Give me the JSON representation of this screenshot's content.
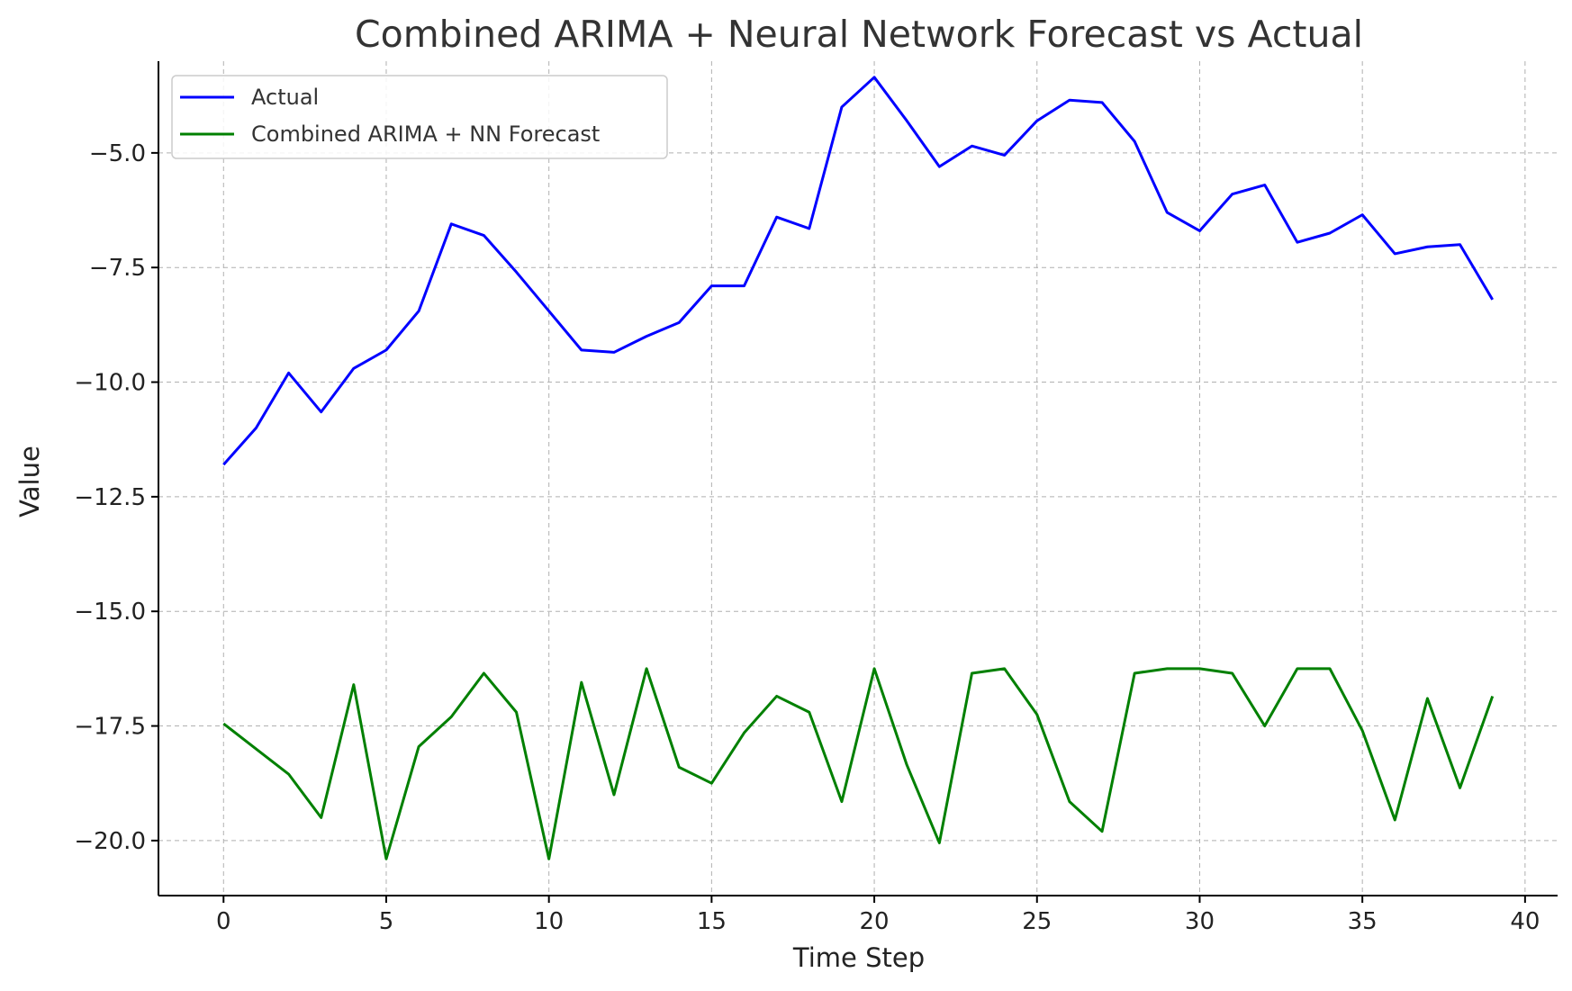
{
  "chart_data": {
    "type": "line",
    "title": "Combined ARIMA + Neural Network Forecast vs Actual",
    "xlabel": "Time Step",
    "ylabel": "Value",
    "xlim": [
      -2,
      41
    ],
    "ylim": [
      -21.2,
      -3.0
    ],
    "xticks": [
      0,
      5,
      10,
      15,
      20,
      25,
      30,
      35,
      40
    ],
    "yticks": [
      -20.0,
      -17.5,
      -15.0,
      -12.5,
      -10.0,
      -7.5,
      -5.0
    ],
    "ytick_labels": [
      "−20.0",
      "−17.5",
      "−15.0",
      "−12.5",
      "−10.0",
      "−7.5",
      "−5.0"
    ],
    "grid": true,
    "legend_position": "top-left",
    "x": [
      0,
      1,
      2,
      3,
      4,
      5,
      6,
      7,
      8,
      9,
      10,
      11,
      12,
      13,
      14,
      15,
      16,
      17,
      18,
      19,
      20,
      21,
      22,
      23,
      24,
      25,
      26,
      27,
      28,
      29,
      30,
      31,
      32,
      33,
      34,
      35,
      36,
      37,
      38,
      39
    ],
    "series": [
      {
        "name": "Actual",
        "color": "#0000ff",
        "values": [
          -11.8,
          -11.0,
          -9.8,
          -10.65,
          -9.7,
          -9.3,
          -8.45,
          -6.55,
          -6.8,
          -7.6,
          -8.45,
          -9.3,
          -9.35,
          -9.0,
          -8.7,
          -7.9,
          -7.9,
          -6.4,
          -6.65,
          -4.0,
          -3.35,
          -4.3,
          -5.3,
          -4.85,
          -5.05,
          -4.3,
          -3.85,
          -3.9,
          -4.75,
          -6.3,
          -6.7,
          -5.9,
          -5.7,
          -6.95,
          -6.75,
          -6.35,
          -7.2,
          -7.05,
          -7.0,
          -8.2
        ]
      },
      {
        "name": "Combined ARIMA + NN Forecast",
        "color": "#008000",
        "values": [
          -17.45,
          -18.0,
          -18.55,
          -19.5,
          -16.6,
          -20.4,
          -17.95,
          -17.3,
          -16.35,
          -17.2,
          -20.4,
          -16.55,
          -19.0,
          -16.25,
          -18.4,
          -18.75,
          -17.65,
          -16.85,
          -17.2,
          -19.15,
          -16.25,
          -18.35,
          -20.05,
          -16.35,
          -16.25,
          -17.25,
          -19.15,
          -19.8,
          -16.35,
          -16.25,
          -16.25,
          -16.35,
          -17.5,
          -16.25,
          -16.25,
          -17.6,
          -19.55,
          -16.9,
          -18.85,
          -16.85
        ]
      }
    ]
  }
}
